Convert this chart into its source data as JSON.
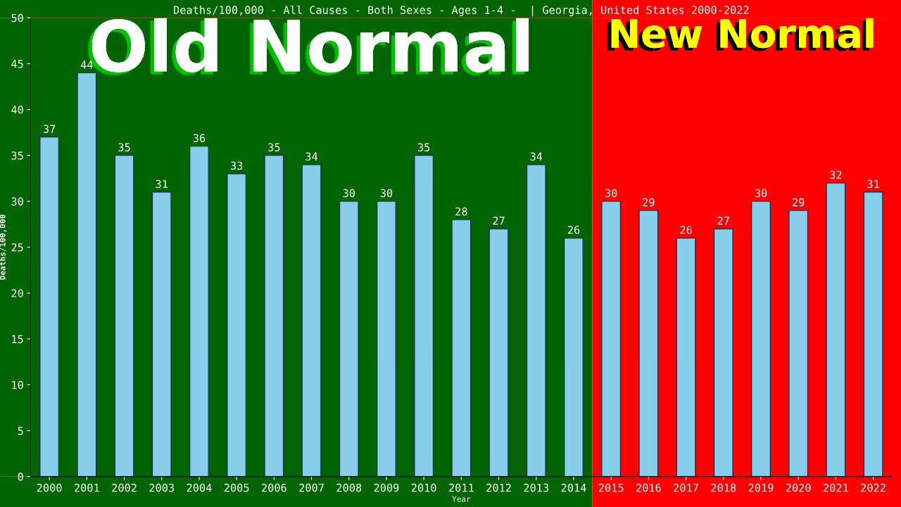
{
  "chart_data": {
    "type": "bar",
    "title": "Deaths/100,000 - All Causes - Both Sexes - Ages 1-4 -  | Georgia, United States 2000-2022",
    "xlabel": "Year",
    "ylabel": "Deaths/100,000",
    "categories": [
      "2000",
      "2001",
      "2002",
      "2003",
      "2004",
      "2005",
      "2006",
      "2007",
      "2008",
      "2009",
      "2010",
      "2011",
      "2012",
      "2013",
      "2014",
      "2015",
      "2016",
      "2017",
      "2018",
      "2019",
      "2020",
      "2021",
      "2022"
    ],
    "values": [
      37,
      44,
      35,
      31,
      36,
      33,
      35,
      34,
      30,
      30,
      35,
      28,
      27,
      34,
      26,
      30,
      29,
      26,
      27,
      30,
      29,
      32,
      31
    ],
    "color": "#87ceeb",
    "data_labels": true,
    "ylim": [
      0,
      50
    ],
    "yticks": [
      0,
      5,
      10,
      15,
      20,
      25,
      30,
      35,
      40,
      45,
      50
    ],
    "grid": false,
    "legend": false,
    "bands": [
      {
        "axis": "x",
        "from": "2000",
        "to": "2014",
        "label": "Old Normal",
        "color": "#006400"
      },
      {
        "axis": "x",
        "from": "2015",
        "to": "2022",
        "label": "New Normal",
        "color": "#ff0000"
      }
    ]
  }
}
